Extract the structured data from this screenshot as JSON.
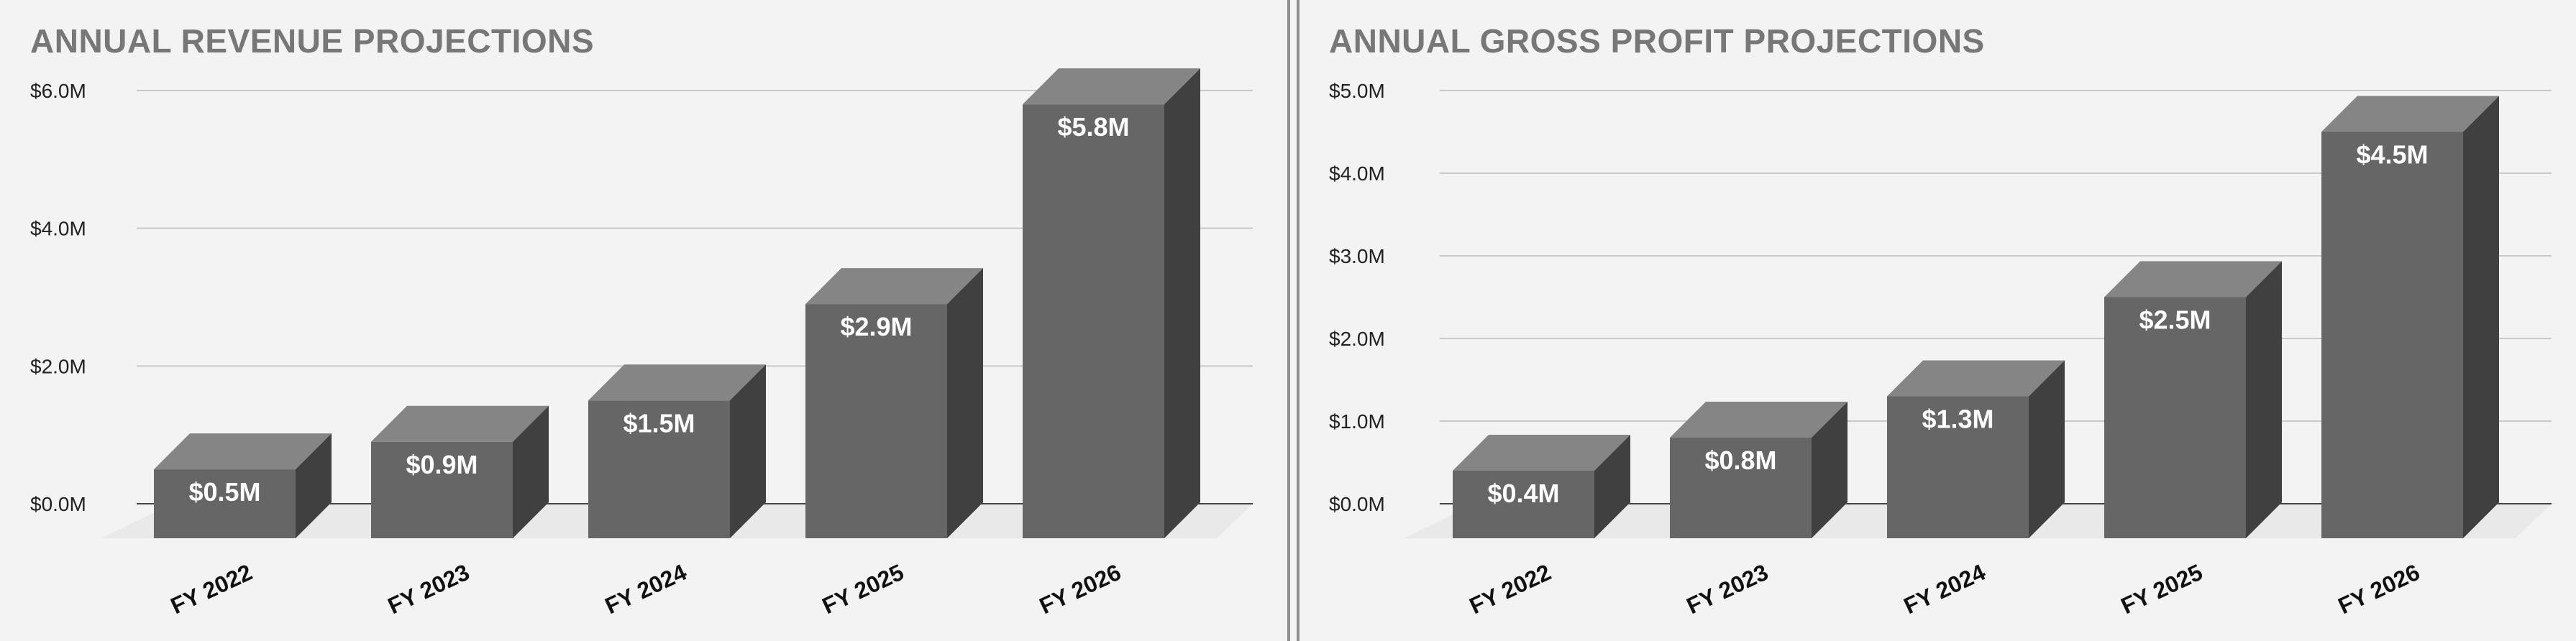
{
  "chart_data": [
    {
      "type": "bar",
      "title": "ANNUAL REVENUE PROJECTIONS",
      "categories": [
        "FY 2022",
        "FY 2023",
        "FY 2024",
        "FY 2025",
        "FY 2026"
      ],
      "values": [
        0.5,
        0.9,
        1.5,
        2.9,
        5.8
      ],
      "value_labels": [
        "$0.5M",
        "$0.9M",
        "$1.5M",
        "$2.9M",
        "$5.8M"
      ],
      "yticks": [
        0,
        2,
        4,
        6
      ],
      "ytick_labels": [
        "$0.0M",
        "$2.0M",
        "$4.0M",
        "$6.0M"
      ],
      "ylim": [
        0,
        6
      ],
      "grid": true,
      "style": "3d"
    },
    {
      "type": "bar",
      "title": "ANNUAL GROSS PROFIT PROJECTIONS",
      "categories": [
        "FY 2022",
        "FY 2023",
        "FY 2024",
        "FY 2025",
        "FY 2026"
      ],
      "values": [
        0.4,
        0.8,
        1.3,
        2.5,
        4.5
      ],
      "value_labels": [
        "$0.4M",
        "$0.8M",
        "$1.3M",
        "$2.5M",
        "$4.5M"
      ],
      "yticks": [
        0,
        1,
        2,
        3,
        4,
        5
      ],
      "ytick_labels": [
        "$0.0M",
        "$1.0M",
        "$2.0M",
        "$3.0M",
        "$4.0M",
        "$5.0M"
      ],
      "ylim": [
        0,
        5
      ],
      "grid": true,
      "style": "3d"
    }
  ],
  "colors": {
    "bar_front": "#666666",
    "bar_top": "#858585",
    "bar_side": "#404040",
    "floor": "#e9e9e9",
    "gridline": "#c8c8c8",
    "baseline": "#444444",
    "value_label": "#ffffff"
  }
}
